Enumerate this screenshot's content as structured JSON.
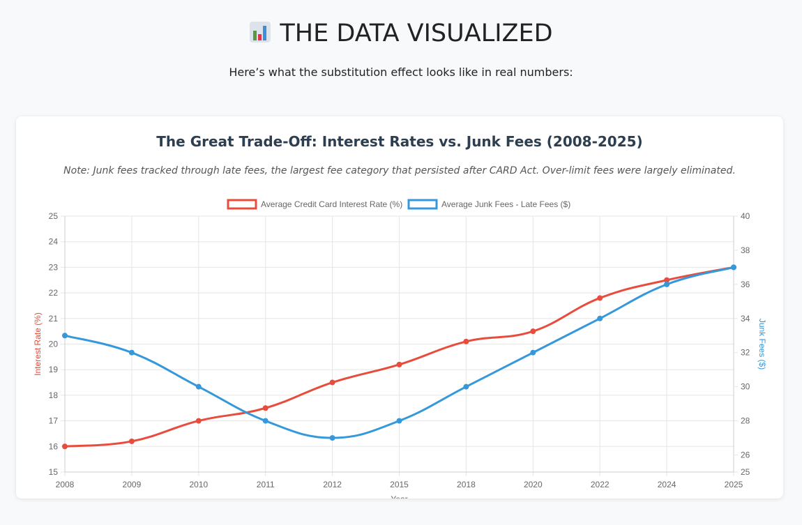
{
  "header": {
    "title": "THE DATA VISUALIZED",
    "icon": "bar-chart-icon",
    "subtitle": "Here’s what the substitution effect looks like in real numbers:"
  },
  "chart_data": {
    "type": "line",
    "title": "The Great Trade-Off: Interest Rates vs. Junk Fees (2008-2025)",
    "note": "Note: Junk fees tracked through late fees, the largest fee category that persisted after CARD Act. Over-limit fees were largely eliminated.",
    "categories": [
      "2008",
      "2009",
      "2010",
      "2011",
      "2012",
      "2015",
      "2018",
      "2020",
      "2022",
      "2024",
      "2025"
    ],
    "series": [
      {
        "name": "Average Credit Card Interest Rate (%)",
        "axis": "left",
        "color": "#e74c3c",
        "values": [
          16,
          16.2,
          17,
          17.5,
          18.5,
          19.2,
          20.1,
          20.5,
          21.8,
          22.5,
          23
        ]
      },
      {
        "name": "Average Junk Fees - Late Fees ($)",
        "axis": "right",
        "color": "#3498db",
        "values": [
          33,
          32,
          30,
          28,
          27,
          28,
          30,
          32,
          34,
          36,
          37
        ]
      }
    ],
    "xlabel": "Year",
    "ylabel": "Interest Rate (%)",
    "y2label": "Junk Fees ($)",
    "ylim": [
      15,
      25
    ],
    "yticks": [
      15,
      16,
      17,
      18,
      19,
      20,
      21,
      22,
      23,
      24,
      25
    ],
    "y2lim": [
      25,
      40
    ],
    "y2ticks": [
      25,
      26,
      28,
      30,
      32,
      34,
      36,
      38,
      40
    ],
    "grid": true,
    "legend": "top"
  }
}
